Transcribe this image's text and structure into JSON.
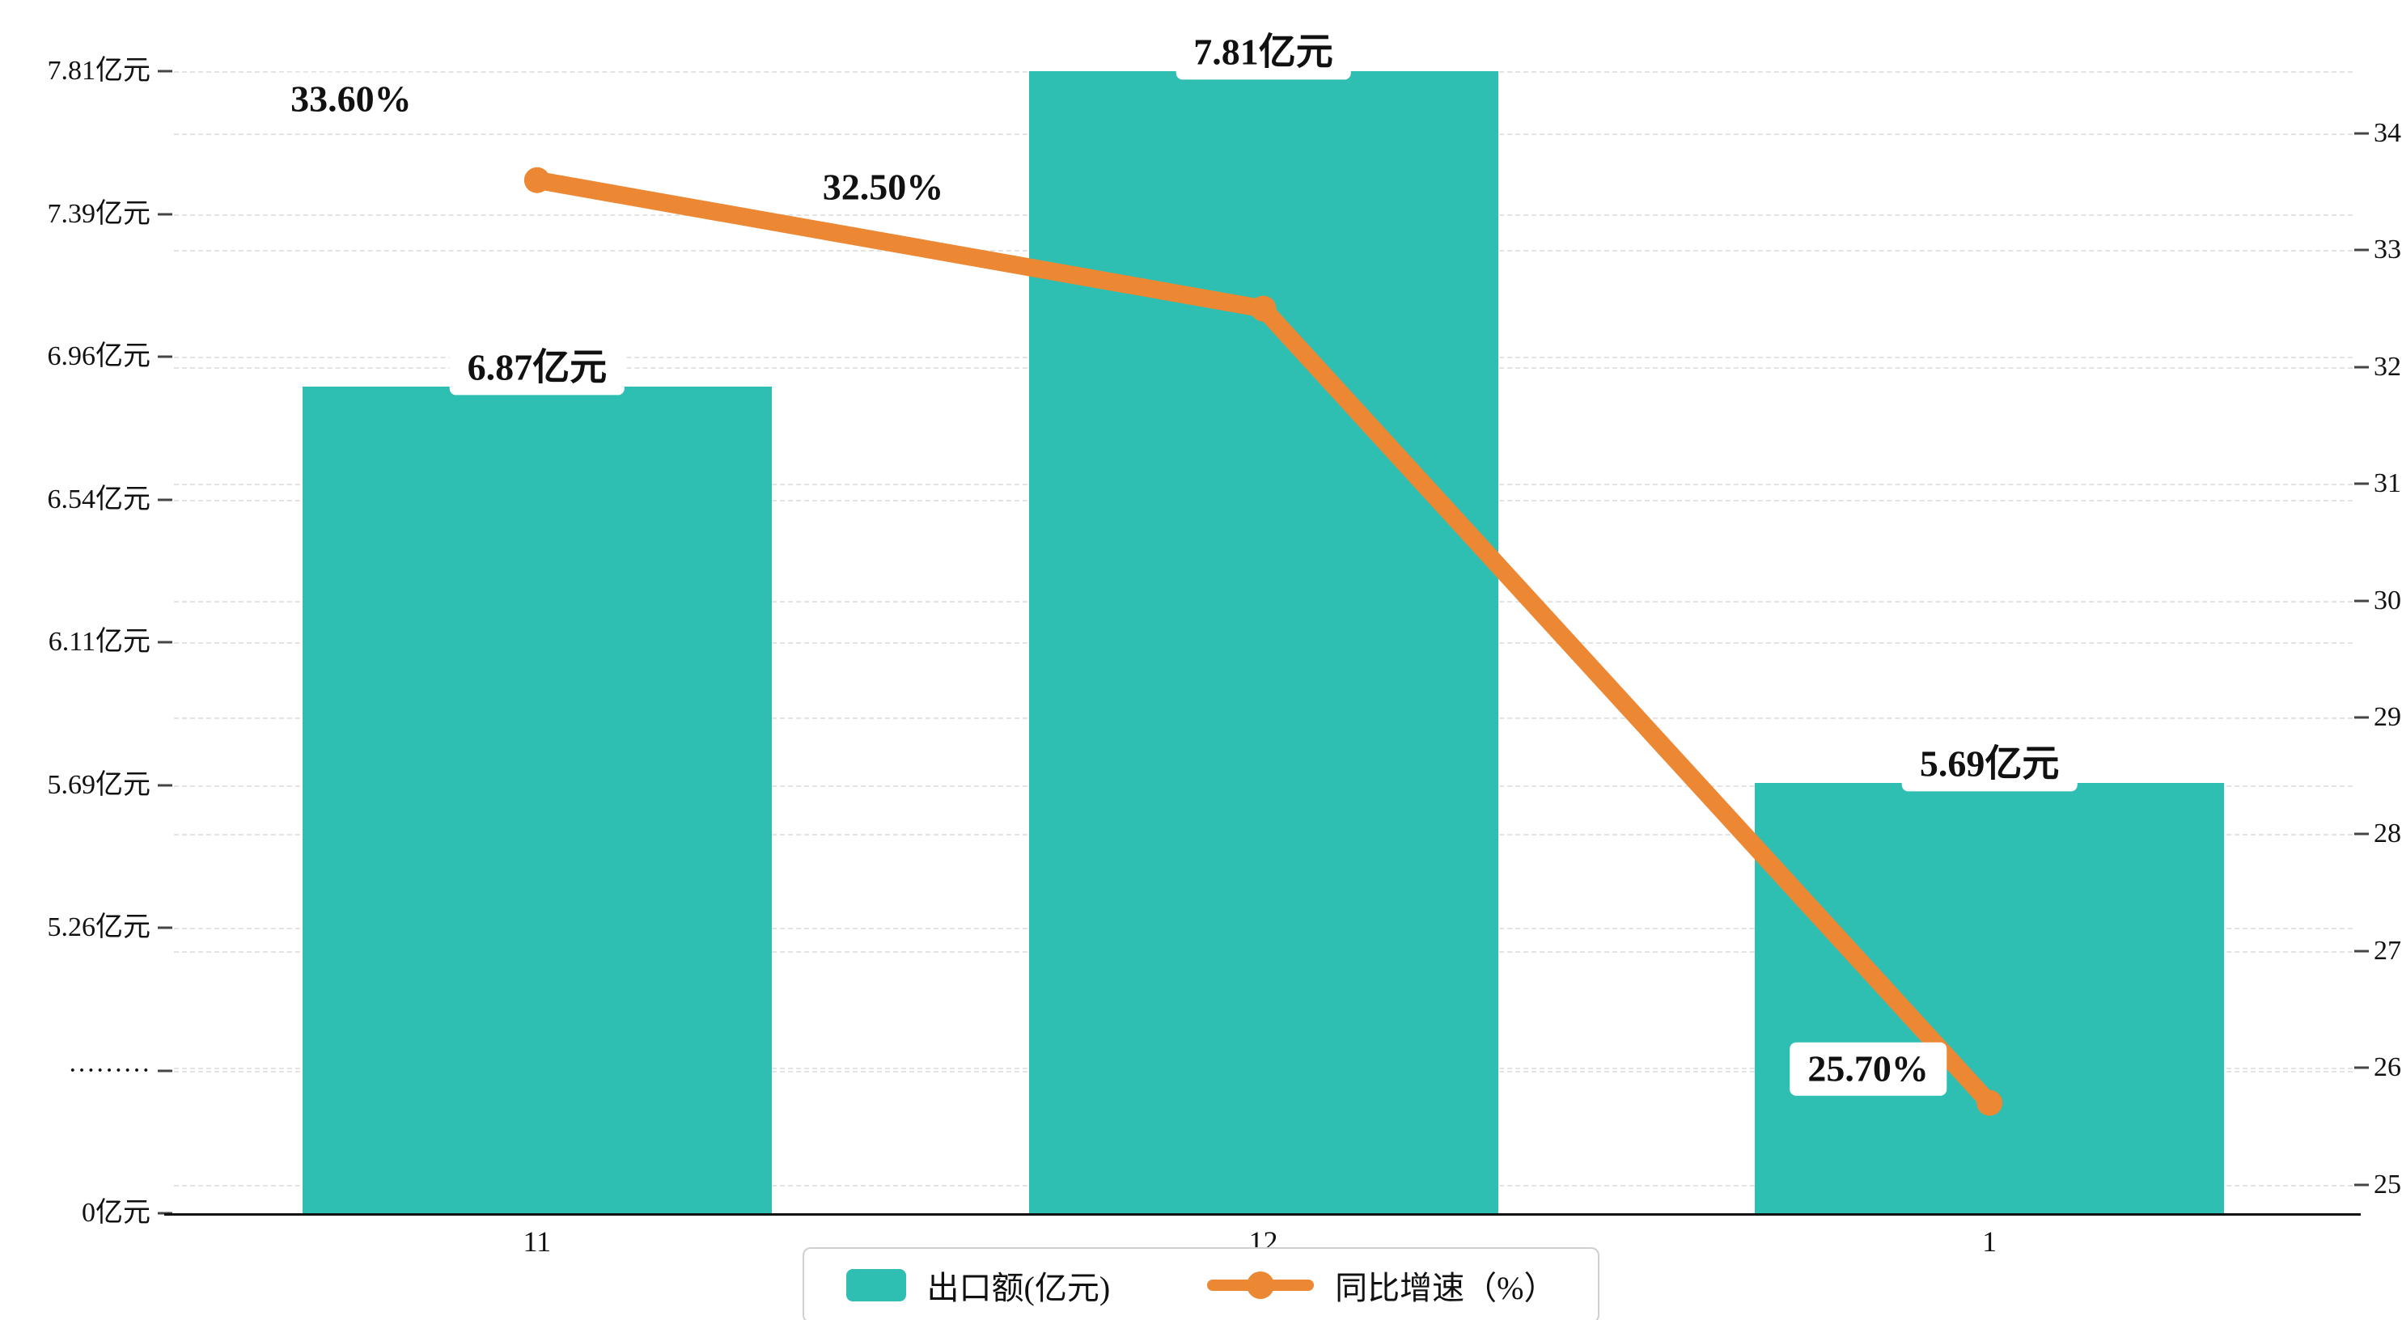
{
  "chart_data": {
    "type": "bar",
    "combo": "bar+line dual axis",
    "categories": [
      "11",
      "12",
      "1"
    ],
    "series": [
      {
        "name": "出口额(亿元)",
        "type": "bar",
        "axis": "left",
        "color": "#2fbfb2",
        "values": [
          6.87,
          7.81,
          5.69
        ],
        "data_labels": [
          "6.87亿元",
          "7.81亿元",
          "5.69亿元"
        ]
      },
      {
        "name": "同比增速（%）",
        "type": "line",
        "axis": "right",
        "color": "#ec8733",
        "values": [
          33.6,
          32.5,
          25.7
        ],
        "data_labels": [
          "33.60%",
          "32.50%",
          "25.70%"
        ]
      }
    ],
    "left_axis": {
      "unit": "亿元",
      "axis_break": true,
      "ticks": [
        {
          "label": "7.81亿元",
          "value": 7.81
        },
        {
          "label": "7.39亿元",
          "value": 7.39
        },
        {
          "label": "6.96亿元",
          "value": 6.96
        },
        {
          "label": "6.54亿元",
          "value": 6.54
        },
        {
          "label": "6.11亿元",
          "value": 6.11
        },
        {
          "label": "5.69亿元",
          "value": 5.69
        },
        {
          "label": "5.26亿元",
          "value": 5.26
        },
        {
          "label": "·········",
          "value": null
        },
        {
          "label": "0亿元",
          "value": 0
        }
      ]
    },
    "right_axis": {
      "ticks": [
        "34",
        "33",
        "32",
        "31",
        "30",
        "29",
        "28",
        "27",
        "26",
        "25"
      ]
    },
    "legend": {
      "position": "bottom-center",
      "items": [
        {
          "label": "出口额(亿元)",
          "marker": "bar-swatch",
          "color": "#2fbfb2"
        },
        {
          "label": "同比增速（%）",
          "marker": "line-dot",
          "color": "#ec8733"
        }
      ]
    },
    "grid": {
      "horizontal_dashed": true,
      "color": "#e3e3e3"
    },
    "colors": {
      "bar": "#2fbfb2",
      "line": "#ec8733",
      "axis_line": "#111111",
      "text": "#111111",
      "label_bg": "#ffffff"
    }
  }
}
